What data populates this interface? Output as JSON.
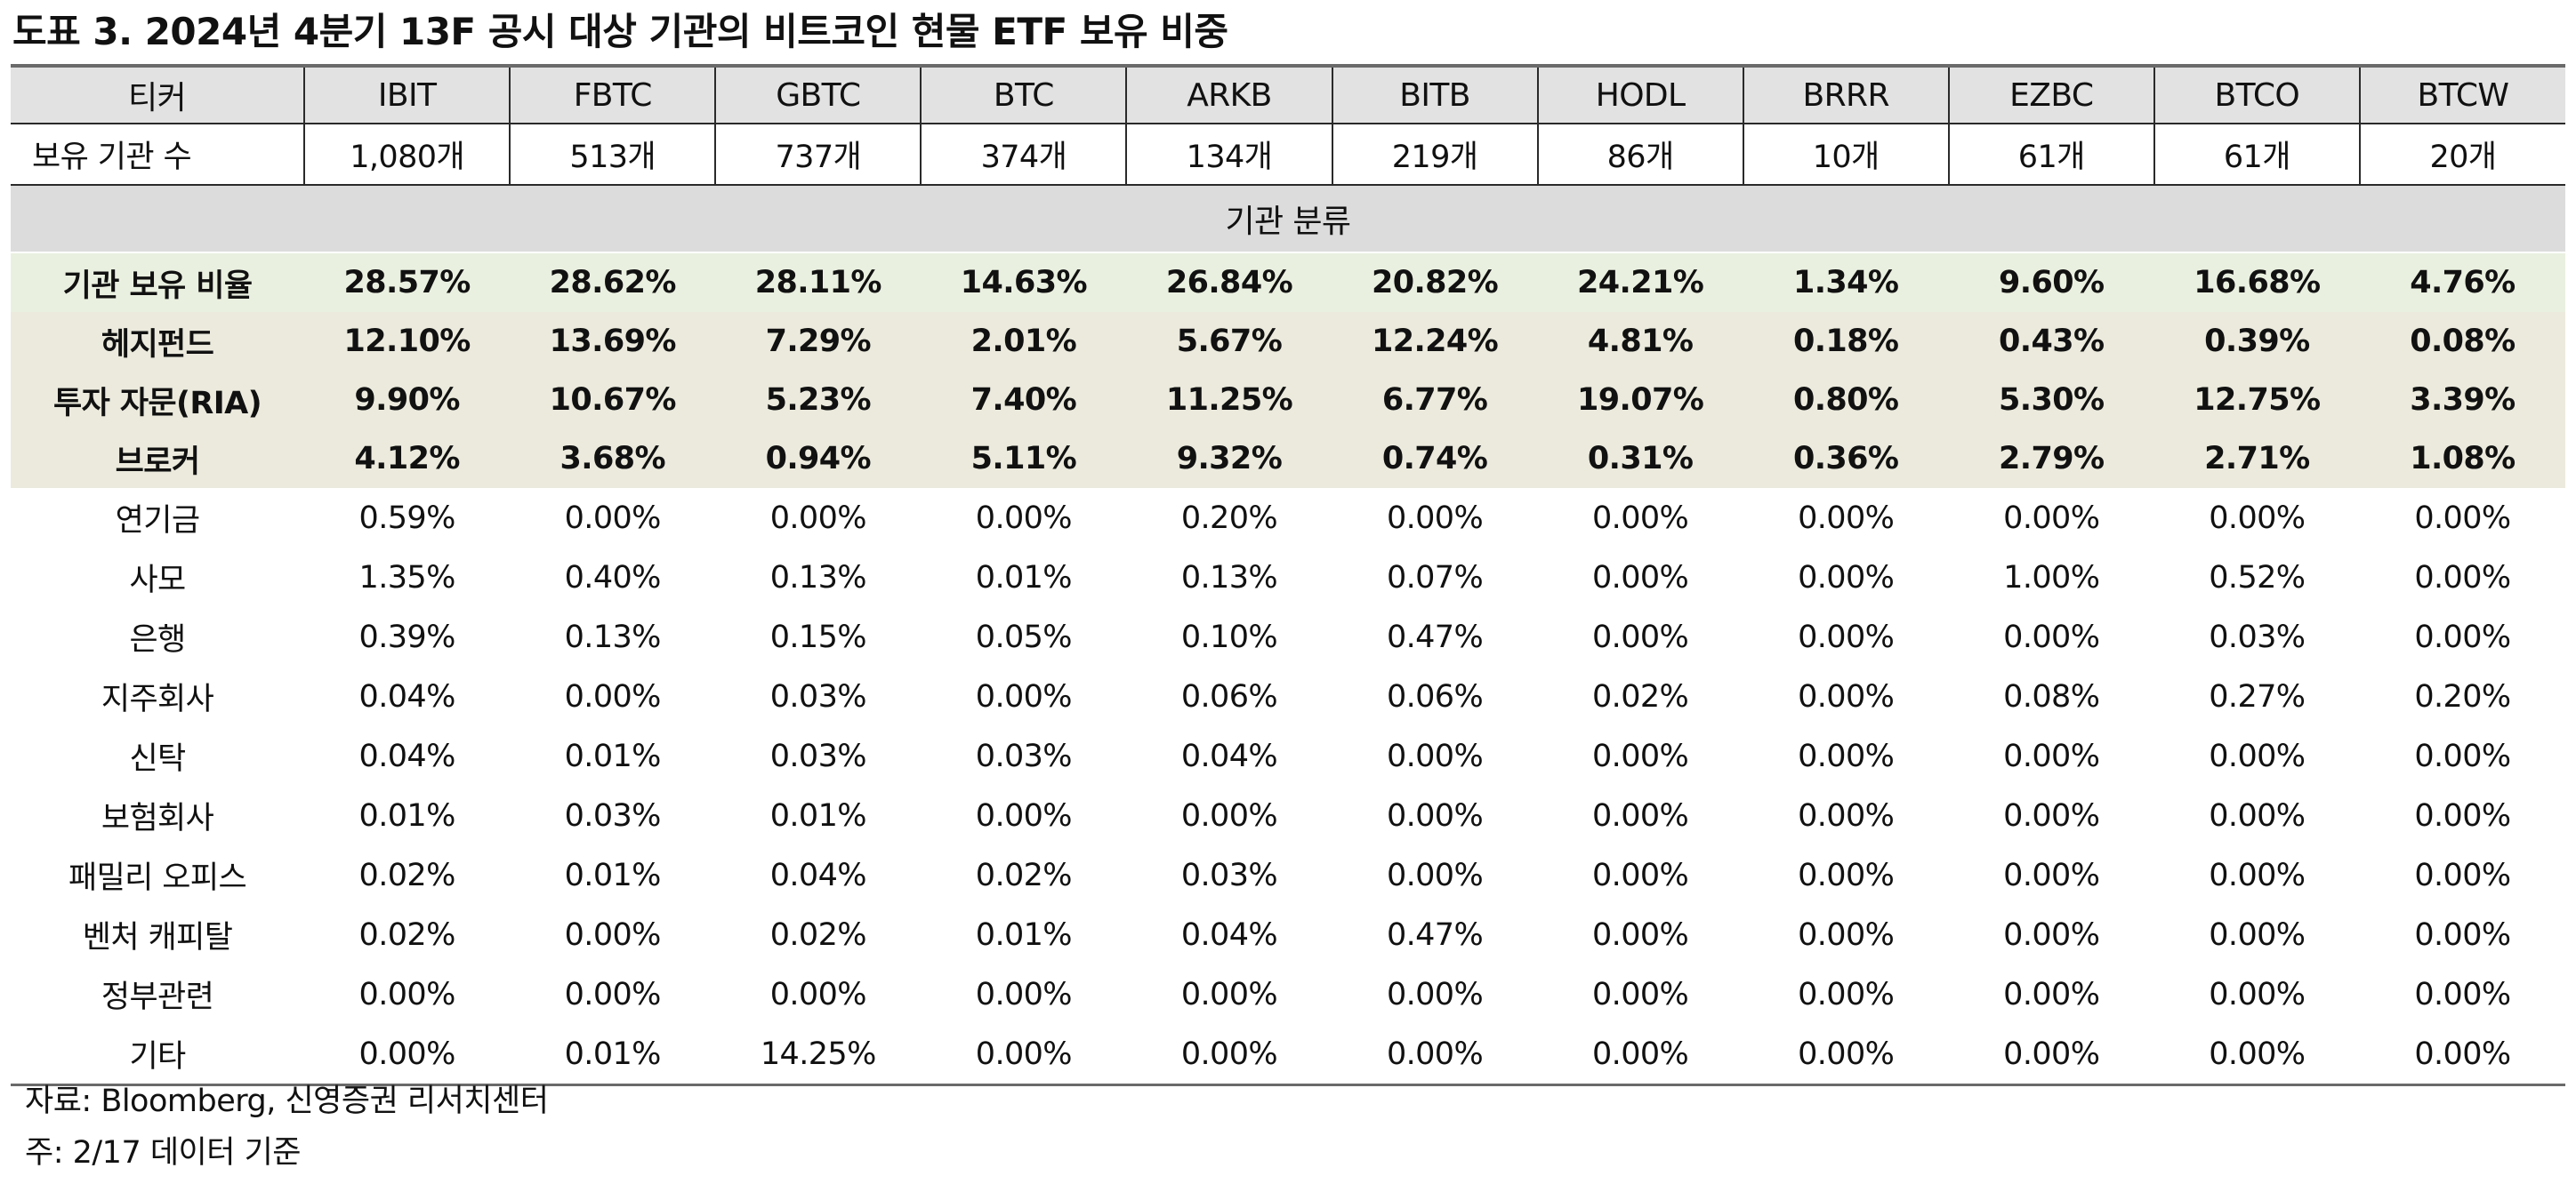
{
  "title": "도표 3. 2024년 4분기 13F 공시 대상 기관의 비트코인 현물 ETF 보유 비중",
  "header": {
    "label": "티커",
    "tickers": [
      "IBIT",
      "FBTC",
      "GBTC",
      "BTC",
      "ARKB",
      "BITB",
      "HODL",
      "BRRR",
      "EZBC",
      "BTCO",
      "BTCW"
    ]
  },
  "holder_count": {
    "label": "보유 기관 수",
    "values": [
      "1,080개",
      "513개",
      "737개",
      "374개",
      "134개",
      "219개",
      "86개",
      "10개",
      "61개",
      "61개",
      "20개"
    ]
  },
  "section_label": "기관 분류",
  "rows": [
    {
      "label": "기관 보유 비율",
      "values": [
        "28.57%",
        "28.62%",
        "28.11%",
        "14.63%",
        "26.84%",
        "20.82%",
        "24.21%",
        "1.34%",
        "9.60%",
        "16.68%",
        "4.76%"
      ]
    },
    {
      "label": "헤지펀드",
      "values": [
        "12.10%",
        "13.69%",
        "7.29%",
        "2.01%",
        "5.67%",
        "12.24%",
        "4.81%",
        "0.18%",
        "0.43%",
        "0.39%",
        "0.08%"
      ]
    },
    {
      "label": "투자 자문(RIA)",
      "values": [
        "9.90%",
        "10.67%",
        "5.23%",
        "7.40%",
        "11.25%",
        "6.77%",
        "19.07%",
        "0.80%",
        "5.30%",
        "12.75%",
        "3.39%"
      ]
    },
    {
      "label": "브로커",
      "values": [
        "4.12%",
        "3.68%",
        "0.94%",
        "5.11%",
        "9.32%",
        "0.74%",
        "0.31%",
        "0.36%",
        "2.79%",
        "2.71%",
        "1.08%"
      ]
    },
    {
      "label": "연기금",
      "values": [
        "0.59%",
        "0.00%",
        "0.00%",
        "0.00%",
        "0.20%",
        "0.00%",
        "0.00%",
        "0.00%",
        "0.00%",
        "0.00%",
        "0.00%"
      ]
    },
    {
      "label": "사모",
      "values": [
        "1.35%",
        "0.40%",
        "0.13%",
        "0.01%",
        "0.13%",
        "0.07%",
        "0.00%",
        "0.00%",
        "1.00%",
        "0.52%",
        "0.00%"
      ]
    },
    {
      "label": "은행",
      "values": [
        "0.39%",
        "0.13%",
        "0.15%",
        "0.05%",
        "0.10%",
        "0.47%",
        "0.00%",
        "0.00%",
        "0.00%",
        "0.03%",
        "0.00%"
      ]
    },
    {
      "label": "지주회사",
      "values": [
        "0.04%",
        "0.00%",
        "0.03%",
        "0.00%",
        "0.06%",
        "0.06%",
        "0.02%",
        "0.00%",
        "0.08%",
        "0.27%",
        "0.20%"
      ]
    },
    {
      "label": "신탁",
      "values": [
        "0.04%",
        "0.01%",
        "0.03%",
        "0.03%",
        "0.04%",
        "0.00%",
        "0.00%",
        "0.00%",
        "0.00%",
        "0.00%",
        "0.00%"
      ]
    },
    {
      "label": "보험회사",
      "values": [
        "0.01%",
        "0.03%",
        "0.01%",
        "0.00%",
        "0.00%",
        "0.00%",
        "0.00%",
        "0.00%",
        "0.00%",
        "0.00%",
        "0.00%"
      ]
    },
    {
      "label": "패밀리 오피스",
      "values": [
        "0.02%",
        "0.01%",
        "0.04%",
        "0.02%",
        "0.03%",
        "0.00%",
        "0.00%",
        "0.00%",
        "0.00%",
        "0.00%",
        "0.00%"
      ]
    },
    {
      "label": "벤처 캐피탈",
      "values": [
        "0.02%",
        "0.00%",
        "0.02%",
        "0.01%",
        "0.04%",
        "0.47%",
        "0.00%",
        "0.00%",
        "0.00%",
        "0.00%",
        "0.00%"
      ]
    },
    {
      "label": "정부관련",
      "values": [
        "0.00%",
        "0.00%",
        "0.00%",
        "0.00%",
        "0.00%",
        "0.00%",
        "0.00%",
        "0.00%",
        "0.00%",
        "0.00%",
        "0.00%"
      ]
    },
    {
      "label": "기타",
      "values": [
        "0.00%",
        "0.01%",
        "14.25%",
        "0.00%",
        "0.00%",
        "0.00%",
        "0.00%",
        "0.00%",
        "0.00%",
        "0.00%",
        "0.00%"
      ]
    }
  ],
  "footnotes": {
    "source": "자료: Bloomberg, 신영증권 리서치센터",
    "note": "주: 2/17 데이터 기준"
  },
  "colors": {
    "header_bg": "#e2e2e2",
    "section_bg": "#dcdcdc",
    "institution_ratio_bg": "#eaf0e0",
    "major_category_bg": "#ebeadd",
    "rule_color": "#6a6a6a"
  }
}
